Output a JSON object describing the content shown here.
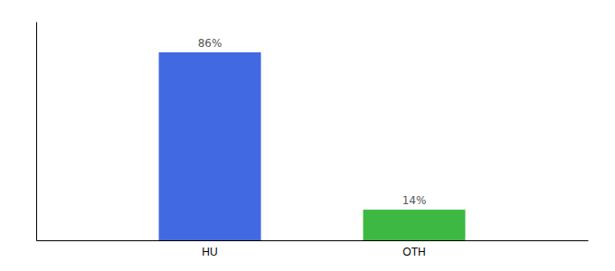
{
  "chart_data": {
    "type": "bar",
    "categories": [
      "HU",
      "OTH"
    ],
    "values": [
      86,
      14
    ],
    "value_labels": [
      "86%",
      "14%"
    ],
    "colors": [
      "#4169e1",
      "#3cb843"
    ],
    "ylim": [
      0,
      100
    ],
    "data_labels": true,
    "tick_labels": "x",
    "grid": false
  }
}
